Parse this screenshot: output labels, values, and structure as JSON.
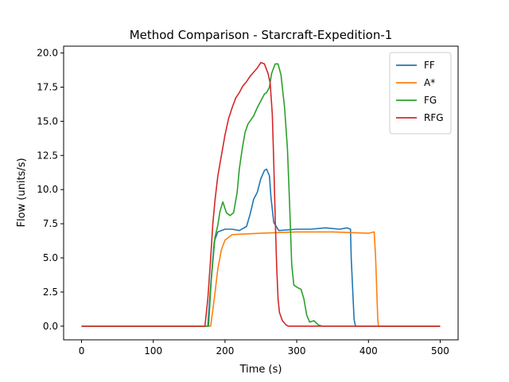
{
  "chart_data": {
    "type": "line",
    "title": "Method Comparison - Starcraft-Expedition-1",
    "xlabel": "Time (s)",
    "ylabel": "Flow (units/s)",
    "xlim": [
      -25,
      525
    ],
    "ylim": [
      -1.0,
      20.5
    ],
    "xticks": [
      0,
      100,
      200,
      300,
      400,
      500
    ],
    "xtick_labels": [
      "0",
      "100",
      "200",
      "300",
      "400",
      "500"
    ],
    "yticks": [
      0.0,
      2.5,
      5.0,
      7.5,
      10.0,
      12.5,
      15.0,
      17.5,
      20.0
    ],
    "ytick_labels": [
      "0.0",
      "2.5",
      "5.0",
      "7.5",
      "10.0",
      "12.5",
      "15.0",
      "17.5",
      "20.0"
    ],
    "grid": false,
    "legend_position": "top-right",
    "series": [
      {
        "name": "FF",
        "color": "#1f77b4",
        "points": [
          [
            0,
            0
          ],
          [
            176,
            0
          ],
          [
            180,
            3.0
          ],
          [
            185,
            6.2
          ],
          [
            190,
            6.9
          ],
          [
            200,
            7.1
          ],
          [
            210,
            7.1
          ],
          [
            220,
            7.0
          ],
          [
            230,
            7.3
          ],
          [
            235,
            8.2
          ],
          [
            240,
            9.3
          ],
          [
            245,
            9.8
          ],
          [
            250,
            10.8
          ],
          [
            255,
            11.4
          ],
          [
            258,
            11.5
          ],
          [
            262,
            11.0
          ],
          [
            264,
            9.5
          ],
          [
            268,
            7.6
          ],
          [
            275,
            7.0
          ],
          [
            300,
            7.1
          ],
          [
            320,
            7.1
          ],
          [
            340,
            7.2
          ],
          [
            360,
            7.1
          ],
          [
            370,
            7.2
          ],
          [
            375,
            7.1
          ],
          [
            376,
            5.0
          ],
          [
            380,
            0.5
          ],
          [
            382,
            0
          ],
          [
            500,
            0
          ]
        ]
      },
      {
        "name": "A*",
        "color": "#ff7f0e",
        "points": [
          [
            0,
            0
          ],
          [
            180,
            0
          ],
          [
            185,
            2.0
          ],
          [
            190,
            4.2
          ],
          [
            195,
            5.6
          ],
          [
            200,
            6.3
          ],
          [
            210,
            6.7
          ],
          [
            250,
            6.8
          ],
          [
            300,
            6.9
          ],
          [
            350,
            6.9
          ],
          [
            400,
            6.8
          ],
          [
            408,
            6.9
          ],
          [
            410,
            5.0
          ],
          [
            413,
            0.5
          ],
          [
            414,
            0
          ],
          [
            500,
            0
          ]
        ]
      },
      {
        "name": "FG",
        "color": "#2ca02c",
        "points": [
          [
            0,
            0
          ],
          [
            177,
            0
          ],
          [
            181,
            3.5
          ],
          [
            186,
            6.5
          ],
          [
            190,
            7.4
          ],
          [
            193,
            8.4
          ],
          [
            197,
            9.1
          ],
          [
            202,
            8.3
          ],
          [
            207,
            8.1
          ],
          [
            212,
            8.3
          ],
          [
            217,
            9.8
          ],
          [
            220,
            11.5
          ],
          [
            224,
            13.0
          ],
          [
            228,
            14.2
          ],
          [
            232,
            14.8
          ],
          [
            236,
            15.1
          ],
          [
            240,
            15.4
          ],
          [
            245,
            16.0
          ],
          [
            250,
            16.5
          ],
          [
            255,
            17.0
          ],
          [
            258,
            17.1
          ],
          [
            262,
            17.5
          ],
          [
            265,
            18.5
          ],
          [
            270,
            19.2
          ],
          [
            274,
            19.2
          ],
          [
            278,
            18.4
          ],
          [
            283,
            16.0
          ],
          [
            287,
            13.0
          ],
          [
            290,
            9.0
          ],
          [
            293,
            4.5
          ],
          [
            296,
            3.0
          ],
          [
            302,
            2.8
          ],
          [
            306,
            2.7
          ],
          [
            310,
            2.0
          ],
          [
            314,
            0.8
          ],
          [
            318,
            0.3
          ],
          [
            324,
            0.4
          ],
          [
            330,
            0.1
          ],
          [
            335,
            0
          ],
          [
            500,
            0
          ]
        ]
      },
      {
        "name": "RFG",
        "color": "#d62728",
        "points": [
          [
            0,
            0
          ],
          [
            172,
            0
          ],
          [
            176,
            2.0
          ],
          [
            180,
            5.0
          ],
          [
            183,
            7.5
          ],
          [
            186,
            9.2
          ],
          [
            190,
            11.0
          ],
          [
            195,
            12.5
          ],
          [
            200,
            14.0
          ],
          [
            205,
            15.2
          ],
          [
            210,
            16.0
          ],
          [
            215,
            16.7
          ],
          [
            220,
            17.1
          ],
          [
            225,
            17.6
          ],
          [
            230,
            17.9
          ],
          [
            235,
            18.3
          ],
          [
            240,
            18.6
          ],
          [
            245,
            18.9
          ],
          [
            250,
            19.3
          ],
          [
            255,
            19.2
          ],
          [
            260,
            18.5
          ],
          [
            263,
            17.8
          ],
          [
            266,
            15.5
          ],
          [
            268,
            12.0
          ],
          [
            270,
            8.0
          ],
          [
            272,
            4.5
          ],
          [
            274,
            2.0
          ],
          [
            276,
            1.0
          ],
          [
            280,
            0.4
          ],
          [
            285,
            0.1
          ],
          [
            288,
            0
          ],
          [
            500,
            0
          ]
        ]
      }
    ]
  }
}
